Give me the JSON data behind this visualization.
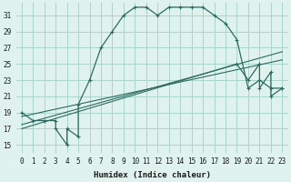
{
  "xlabel": "Humidex (Indice chaleur)",
  "bg_color": "#dff2ee",
  "line_color": "#2d6b60",
  "grid_color": "#aad4cc",
  "xlim": [
    -0.5,
    23.5
  ],
  "ylim": [
    14,
    32.5
  ],
  "xticks": [
    0,
    1,
    2,
    3,
    4,
    5,
    6,
    7,
    8,
    9,
    10,
    11,
    12,
    13,
    14,
    15,
    16,
    17,
    18,
    19,
    20,
    21,
    22,
    23
  ],
  "yticks": [
    15,
    17,
    19,
    21,
    23,
    25,
    27,
    29,
    31
  ],
  "curve1_x": [
    0,
    1,
    2,
    3,
    3,
    4,
    4,
    5,
    5,
    6,
    7,
    8,
    9,
    10,
    11,
    12,
    13,
    14,
    15,
    16,
    17,
    18,
    19,
    20,
    21,
    22,
    23
  ],
  "curve1_y": [
    19,
    18,
    18,
    18,
    17,
    15,
    17,
    16,
    20,
    23,
    27,
    29,
    31,
    32,
    32,
    31,
    32,
    32,
    32,
    32,
    31,
    30,
    28,
    22,
    23,
    22,
    22
  ],
  "line2_x": [
    0,
    19
  ],
  "line2_y": [
    17,
    25
  ],
  "line3_x": [
    0,
    23
  ],
  "line3_y": [
    17.5,
    26.5
  ],
  "line4_x": [
    0,
    23
  ],
  "line4_y": [
    18.5,
    25.5
  ],
  "curve5_x": [
    19,
    20,
    21,
    21,
    22,
    22,
    23
  ],
  "curve5_y": [
    25,
    23,
    25,
    22,
    24,
    21,
    22
  ],
  "tickfontsize": 5.5,
  "labelfontsize": 6.5
}
